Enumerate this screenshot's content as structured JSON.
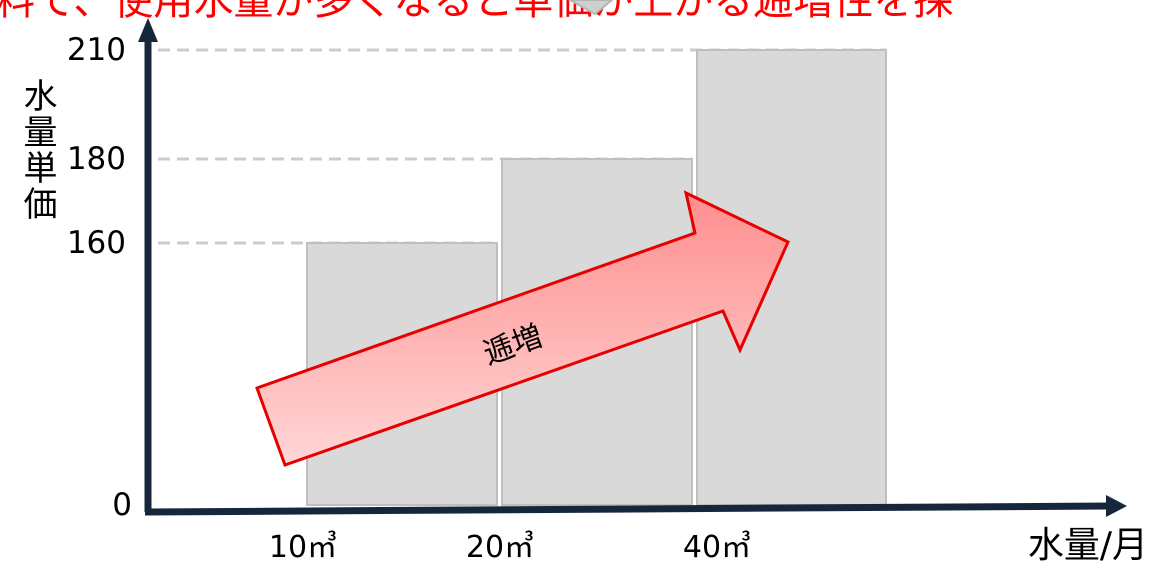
{
  "header_fragment": "料で、使用水量が多くなると単価が上がる逓増性を採",
  "chart_data": {
    "type": "bar",
    "categories": [
      "10㎥",
      "20㎥",
      "40㎥"
    ],
    "values": [
      160,
      180,
      210
    ],
    "ylabel": "水量単価",
    "xlabel": "水量/月",
    "y_ticks": [
      "0",
      "160",
      "180",
      "210"
    ],
    "ylim": [
      0,
      210
    ],
    "grid": false,
    "reference_lines": [
      160,
      180,
      210
    ],
    "annotation": "逓増",
    "colors": {
      "bar_fill": "#d9d9d9",
      "bar_stroke": "#bfbfbf",
      "axis": "#17273b",
      "dashed": "#cccccc",
      "arrow_stroke": "#e60000",
      "arrow_fill_top": "#ff8e8e",
      "arrow_fill_bottom": "#ffd6d6",
      "header_text": "#ff0000"
    }
  }
}
